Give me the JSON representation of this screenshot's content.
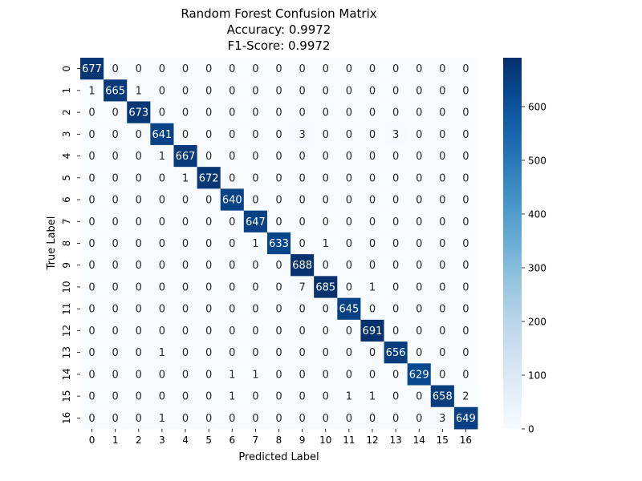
{
  "chart_data": {
    "type": "heatmap",
    "title_lines": [
      "Random Forest Confusion Matrix",
      "Accuracy: 0.9972",
      "F1-Score: 0.9972"
    ],
    "xlabel": "Predicted Label",
    "ylabel": "True Label",
    "x_categories": [
      "0",
      "1",
      "2",
      "3",
      "4",
      "5",
      "6",
      "7",
      "8",
      "9",
      "10",
      "11",
      "12",
      "13",
      "14",
      "15",
      "16"
    ],
    "y_categories": [
      "0",
      "1",
      "2",
      "3",
      "4",
      "5",
      "6",
      "7",
      "8",
      "9",
      "10",
      "11",
      "12",
      "13",
      "14",
      "15",
      "16"
    ],
    "matrix": [
      [
        677,
        0,
        0,
        0,
        0,
        0,
        0,
        0,
        0,
        0,
        0,
        0,
        0,
        0,
        0,
        0,
        0
      ],
      [
        1,
        665,
        1,
        0,
        0,
        0,
        0,
        0,
        0,
        0,
        0,
        0,
        0,
        0,
        0,
        0,
        0
      ],
      [
        0,
        0,
        673,
        0,
        0,
        0,
        0,
        0,
        0,
        0,
        0,
        0,
        0,
        0,
        0,
        0,
        0
      ],
      [
        0,
        0,
        0,
        641,
        0,
        0,
        0,
        0,
        0,
        3,
        0,
        0,
        0,
        3,
        0,
        0,
        0
      ],
      [
        0,
        0,
        0,
        1,
        667,
        0,
        0,
        0,
        0,
        0,
        0,
        0,
        0,
        0,
        0,
        0,
        0
      ],
      [
        0,
        0,
        0,
        0,
        1,
        672,
        0,
        0,
        0,
        0,
        0,
        0,
        0,
        0,
        0,
        0,
        0
      ],
      [
        0,
        0,
        0,
        0,
        0,
        0,
        640,
        0,
        0,
        0,
        0,
        0,
        0,
        0,
        0,
        0,
        0
      ],
      [
        0,
        0,
        0,
        0,
        0,
        0,
        0,
        647,
        0,
        0,
        0,
        0,
        0,
        0,
        0,
        0,
        0
      ],
      [
        0,
        0,
        0,
        0,
        0,
        0,
        0,
        1,
        633,
        0,
        1,
        0,
        0,
        0,
        0,
        0,
        0
      ],
      [
        0,
        0,
        0,
        0,
        0,
        0,
        0,
        0,
        0,
        688,
        0,
        0,
        0,
        0,
        0,
        0,
        0
      ],
      [
        0,
        0,
        0,
        0,
        0,
        0,
        0,
        0,
        0,
        7,
        685,
        0,
        1,
        0,
        0,
        0,
        0
      ],
      [
        0,
        0,
        0,
        0,
        0,
        0,
        0,
        0,
        0,
        0,
        0,
        645,
        0,
        0,
        0,
        0,
        0
      ],
      [
        0,
        0,
        0,
        0,
        0,
        0,
        0,
        0,
        0,
        0,
        0,
        0,
        691,
        0,
        0,
        0,
        0
      ],
      [
        0,
        0,
        0,
        1,
        0,
        0,
        0,
        0,
        0,
        0,
        0,
        0,
        0,
        656,
        0,
        0,
        0
      ],
      [
        0,
        0,
        0,
        0,
        0,
        0,
        1,
        1,
        0,
        0,
        0,
        0,
        0,
        0,
        629,
        0,
        0
      ],
      [
        0,
        0,
        0,
        0,
        0,
        0,
        1,
        0,
        0,
        0,
        0,
        1,
        1,
        0,
        0,
        658,
        2
      ],
      [
        0,
        0,
        0,
        1,
        0,
        0,
        0,
        0,
        0,
        0,
        0,
        0,
        0,
        0,
        0,
        3,
        649
      ]
    ],
    "colorbar": {
      "colormap": "Blues",
      "range": [
        0,
        691
      ],
      "ticks": [
        0,
        100,
        200,
        300,
        400,
        500,
        600
      ]
    },
    "annotations": true,
    "grid": false
  }
}
